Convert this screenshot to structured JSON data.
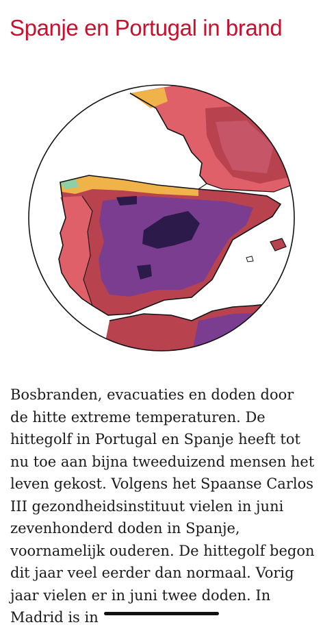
{
  "article": {
    "title": "Spanje en Portugal in brand",
    "body": "Bosbranden, evacuaties en doden door de hitte extreme temperaturen. De hittegolf in Portugal en Spanje heeft tot nu toe aan bijna tweeduizend mensen het leven gekost. Volgens het Spaanse Carlos III gezondheidsinstituut vielen in juni zevenhonderd doden in Spanje, voornamelijk ouderen. De hittegolf begon dit jaar veel eerder dan normaal. Vorig jaar vielen er in juni twee doden. In Madrid is in"
  },
  "map": {
    "subject": "Iberian peninsula heat map",
    "colors": {
      "hottest": "#2b1a4a",
      "very_hot": "#7b3d8f",
      "hot": "#b8434f",
      "warm": "#e0606a",
      "mild": "#f0b34a",
      "cool": "#8fcfa6",
      "sea": "#ffffff",
      "accent": "#c8102e"
    }
  }
}
